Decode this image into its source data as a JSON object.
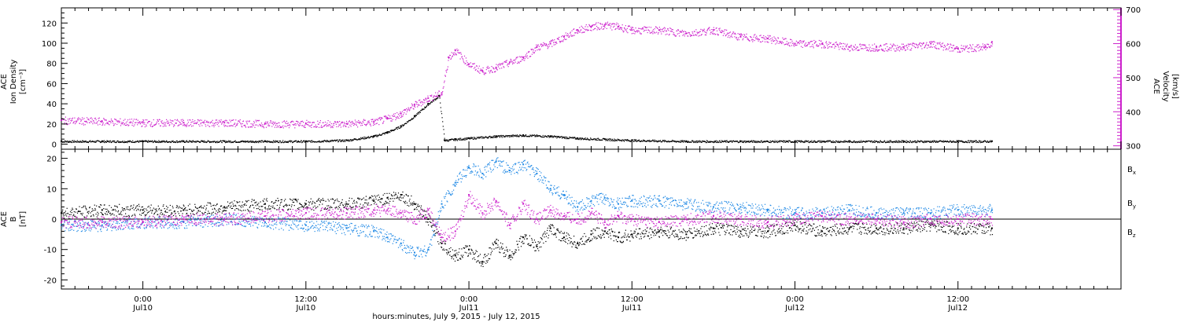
{
  "colors": {
    "density": "#000000",
    "velocity": "#cc22cc",
    "bx": "#000000",
    "by": "#1e88e5",
    "bz": "#cc22cc",
    "axis": "#000000"
  },
  "chart_data": [
    {
      "type": "scatter",
      "panel": "top",
      "ylabel_left": [
        "ACE",
        "Ion Density",
        "[cm⁻³]"
      ],
      "ylabel_right": [
        "ACE",
        "Velocity",
        "[km/s]"
      ],
      "ylim_left": [
        -5,
        135
      ],
      "yticks_left": [
        0,
        20,
        40,
        60,
        80,
        100,
        120
      ],
      "ylim_right": [
        290,
        705
      ],
      "yticks_right": [
        300,
        400,
        500,
        600,
        700
      ],
      "xlim_hours": [
        -6,
        72
      ],
      "series": [
        {
          "key": "density",
          "axis": "left",
          "x": [
            -6,
            -3,
            0,
            3,
            6,
            9,
            12,
            15,
            17,
            18,
            19,
            20,
            21,
            21.8,
            22.2,
            23,
            24,
            26,
            28,
            30,
            32,
            34,
            36,
            40,
            44,
            48,
            52,
            56,
            60,
            62.5
          ],
          "y": [
            3,
            3,
            3,
            3,
            3,
            3,
            3,
            4,
            8,
            12,
            18,
            28,
            40,
            48,
            4,
            5,
            6,
            8,
            9,
            8,
            6,
            5,
            4,
            3,
            3,
            3,
            3,
            3,
            3,
            3
          ]
        },
        {
          "key": "velocity",
          "axis": "right",
          "x": [
            -6,
            -3,
            0,
            3,
            6,
            9,
            12,
            15,
            17,
            18,
            19,
            20,
            21,
            22,
            22.5,
            23,
            24,
            25,
            26,
            27,
            28,
            29,
            30,
            31,
            32,
            33,
            34,
            35,
            36,
            38,
            40,
            42,
            44,
            46,
            48,
            50,
            52,
            54,
            56,
            58,
            60,
            62,
            62.5
          ],
          "y": [
            375,
            372,
            368,
            368,
            368,
            365,
            365,
            365,
            370,
            380,
            395,
            420,
            440,
            455,
            560,
            580,
            540,
            520,
            530,
            545,
            560,
            590,
            600,
            620,
            640,
            650,
            655,
            650,
            640,
            640,
            630,
            640,
            620,
            615,
            600,
            600,
            590,
            590,
            590,
            600,
            585,
            590,
            605
          ]
        }
      ]
    },
    {
      "type": "scatter",
      "panel": "bottom",
      "ylabel_left": [
        "ACE",
        "B",
        "[nT]"
      ],
      "ylim": [
        -23,
        23
      ],
      "yticks": [
        -20,
        -10,
        0,
        10,
        20
      ],
      "xlim_hours": [
        -6,
        72
      ],
      "legend": [
        {
          "key": "bx",
          "label": "B",
          "sub": "x"
        },
        {
          "key": "by",
          "label": "B",
          "sub": "y"
        },
        {
          "key": "bz",
          "label": "B",
          "sub": "z"
        }
      ],
      "series": [
        {
          "key": "bx",
          "x": [
            -6,
            -3,
            0,
            3,
            6,
            9,
            12,
            15,
            17,
            18,
            19,
            20,
            21,
            22,
            23,
            24,
            25,
            26,
            27,
            28,
            29,
            30,
            31,
            32,
            33,
            34,
            35,
            36,
            38,
            40,
            42,
            44,
            46,
            48,
            50,
            52,
            54,
            56,
            58,
            60,
            62.5
          ],
          "y": [
            2,
            3,
            3,
            3,
            4,
            5,
            5,
            5,
            6,
            7,
            8,
            5,
            0,
            -8,
            -12,
            -10,
            -14,
            -8,
            -12,
            -6,
            -9,
            -3,
            -6,
            -8,
            -5,
            -4,
            -6,
            -5,
            -4,
            -5,
            -3,
            -4,
            -4,
            -2,
            -4,
            -3,
            -3,
            -3,
            -2,
            -3,
            -3
          ]
        },
        {
          "key": "by",
          "x": [
            -6,
            -3,
            0,
            3,
            6,
            9,
            12,
            15,
            17,
            18,
            19,
            20,
            21,
            22,
            23,
            24,
            25,
            26,
            27,
            28,
            29,
            30,
            31,
            32,
            33,
            34,
            35,
            36,
            38,
            40,
            42,
            44,
            46,
            48,
            50,
            52,
            54,
            56,
            58,
            60,
            62.5
          ],
          "y": [
            -2,
            -2,
            -1,
            -1,
            0,
            -1,
            -2,
            -3,
            -4,
            -6,
            -8,
            -11,
            -10,
            5,
            12,
            17,
            15,
            19,
            16,
            18,
            15,
            10,
            8,
            4,
            6,
            7,
            5,
            6,
            6,
            5,
            4,
            4,
            3,
            2,
            2,
            3,
            2,
            2,
            2,
            3,
            3
          ]
        },
        {
          "key": "bz",
          "x": [
            -6,
            -3,
            0,
            3,
            6,
            9,
            12,
            15,
            17,
            18,
            19,
            20,
            21,
            22,
            23,
            24,
            25,
            26,
            27,
            28,
            29,
            30,
            31,
            32,
            33,
            34,
            35,
            36,
            38,
            40,
            42,
            44,
            46,
            48,
            50,
            52,
            54,
            56,
            58,
            60,
            62.5
          ],
          "y": [
            -1,
            -1,
            -1,
            0,
            0,
            1,
            2,
            2,
            3,
            3,
            2,
            0,
            3,
            -6,
            -4,
            8,
            2,
            6,
            -2,
            5,
            0,
            3,
            1,
            0,
            2,
            -1,
            1,
            0,
            -1,
            0,
            1,
            0,
            -1,
            0,
            1,
            0,
            0,
            -1,
            0,
            0,
            0
          ]
        }
      ]
    }
  ],
  "x_axis": {
    "ticks": [
      {
        "hours": 0,
        "time": "0:00",
        "day": "Jul10"
      },
      {
        "hours": 12,
        "time": "12:00",
        "day": "Jul10"
      },
      {
        "hours": 24,
        "time": "0:00",
        "day": "Jul11"
      },
      {
        "hours": 36,
        "time": "12:00",
        "day": "Jul11"
      },
      {
        "hours": 48,
        "time": "0:00",
        "day": "Jul12"
      },
      {
        "hours": 60,
        "time": "12:00",
        "day": "Jul12"
      }
    ],
    "label": "hours:minutes, July  9, 2015 - July 12, 2015"
  }
}
